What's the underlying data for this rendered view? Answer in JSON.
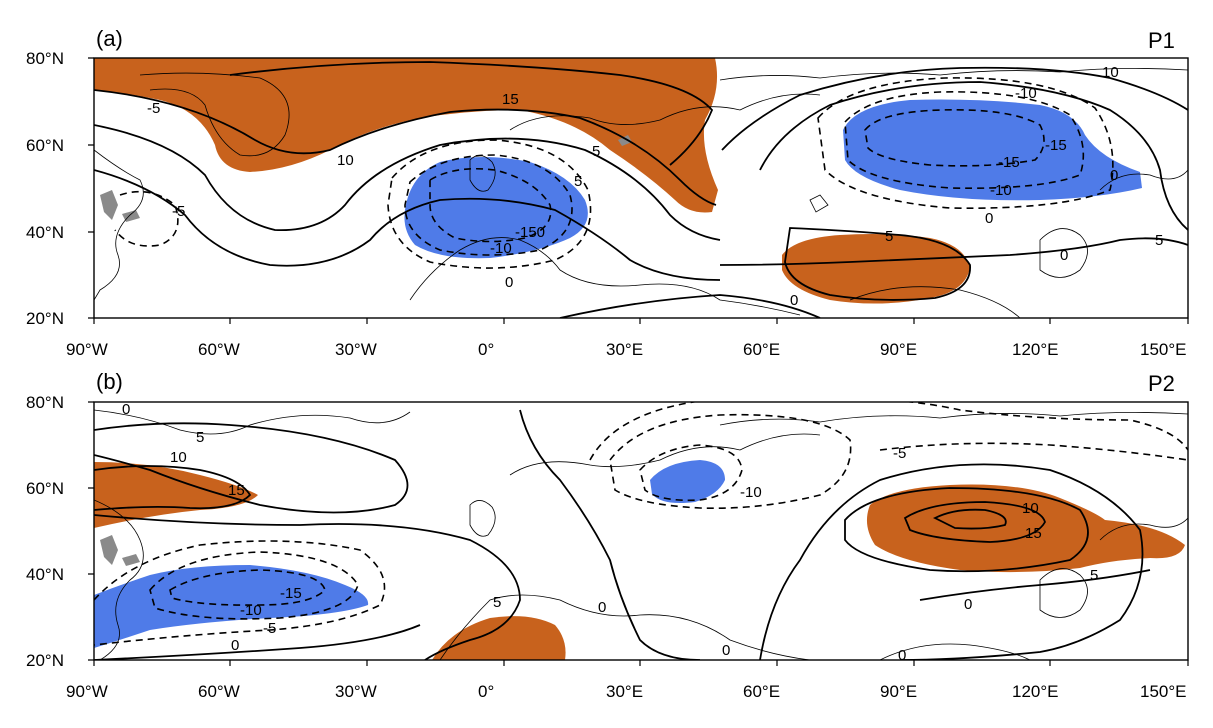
{
  "figure": {
    "x_ticks": [
      "90°W",
      "60°W",
      "30°W",
      "0°",
      "30°E",
      "60°E",
      "90°E",
      "120°E",
      "150°E"
    ],
    "y_ticks": [
      "80°N",
      "60°N",
      "40°N",
      "20°N"
    ],
    "colors": {
      "positive_shading": "#c8621d",
      "negative_shading": "#4f7be8",
      "lakes": "#8a8a8a"
    }
  },
  "panels": [
    {
      "label": "(a)",
      "title": "P1",
      "contour_labels": [
        "15",
        "10",
        "5",
        "0",
        "-5",
        "-10",
        "-15",
        "5",
        "0",
        "-10",
        "-15",
        "-5",
        "10",
        "5",
        "0",
        "-150",
        "-10",
        "0",
        "5",
        "0"
      ]
    },
    {
      "label": "(b)",
      "title": "P2",
      "contour_labels": [
        "0",
        "5",
        "10",
        "15",
        "-15",
        "-10",
        "-5",
        "0",
        "5",
        "-10",
        "-5",
        "10",
        "15",
        "0",
        "0",
        "0",
        "0",
        "5"
      ]
    }
  ]
}
